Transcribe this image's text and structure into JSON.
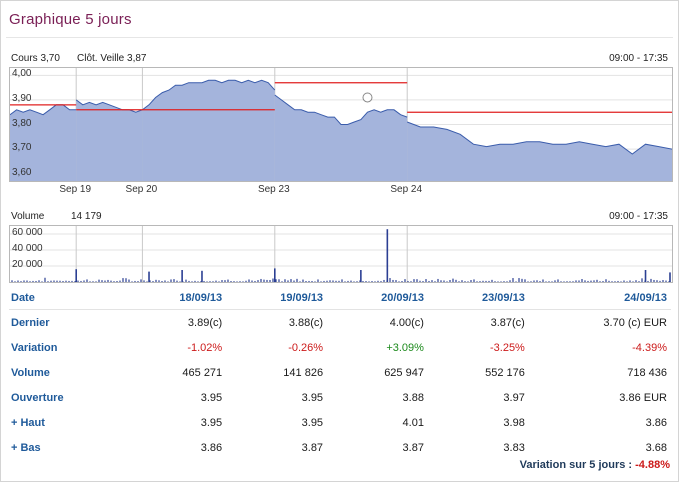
{
  "title": "Graphique 5 jours",
  "price_chart": {
    "cours_label": "Cours 3,70",
    "cloture_label": "Clôt. Veille 3,87",
    "time_range": "09:00 - 17:35",
    "y_ticks": [
      "4,00",
      "3,90",
      "3,80",
      "3,70",
      "3,60"
    ],
    "x_ticks": [
      "Sep 19",
      "Sep 20",
      "Sep 23",
      "Sep 24"
    ]
  },
  "volume_chart": {
    "volume_label": "Volume",
    "volume_value": "14 179",
    "time_range": "09:00 - 17:35",
    "y_ticks": [
      "60 000",
      "40 000",
      "20 000"
    ]
  },
  "chart_data": [
    {
      "type": "area",
      "ylim": [
        3.57,
        4.03
      ],
      "y_ticks": [
        4.0,
        3.9,
        3.8,
        3.7,
        3.6
      ],
      "x_labels": [
        "Sep 19",
        "Sep 20",
        "Sep 23",
        "Sep 24"
      ],
      "series": [
        {
          "x": [
            0.0,
            0.1,
            0.2,
            0.3,
            0.4,
            0.5,
            0.6,
            0.7,
            0.8,
            0.9,
            1.0
          ],
          "y": [
            3.84,
            3.86,
            3.85,
            3.86,
            3.85,
            3.84,
            3.86,
            3.88,
            3.88,
            3.86,
            3.86
          ]
        },
        {
          "x": [
            1.0,
            1.1,
            1.2,
            1.3,
            1.4,
            1.5,
            1.6,
            1.7,
            1.8,
            1.9,
            2.0
          ],
          "y": [
            3.9,
            3.88,
            3.89,
            3.88,
            3.89,
            3.88,
            3.87,
            3.86,
            3.86,
            3.85,
            3.86
          ]
        },
        {
          "x": [
            2.0,
            2.1,
            2.2,
            2.3,
            2.4,
            2.5,
            2.6,
            2.7,
            2.8,
            2.9,
            3.0,
            3.1,
            3.2,
            3.3,
            3.4,
            3.5,
            3.6,
            3.7,
            3.8,
            3.9,
            4.0
          ],
          "y": [
            3.86,
            3.88,
            3.91,
            3.93,
            3.94,
            3.96,
            3.96,
            3.97,
            3.97,
            3.97,
            3.98,
            3.98,
            3.97,
            3.98,
            3.98,
            3.97,
            3.98,
            3.97,
            3.98,
            3.97,
            3.94
          ]
        },
        {
          "x": [
            4.0,
            4.1,
            4.2,
            4.3,
            4.4,
            4.5,
            4.6,
            4.7,
            4.8,
            4.9,
            5.0,
            5.1,
            5.2,
            5.3,
            5.4,
            5.5,
            5.6,
            5.7,
            5.8,
            5.9,
            6.0
          ],
          "y": [
            3.92,
            3.9,
            3.88,
            3.86,
            3.86,
            3.85,
            3.85,
            3.84,
            3.83,
            3.83,
            3.8,
            3.8,
            3.81,
            3.82,
            3.85,
            3.86,
            3.85,
            3.86,
            3.86,
            3.84,
            3.83
          ]
        },
        {
          "x": [
            6.0,
            6.2,
            6.4,
            6.6,
            6.8,
            7.0,
            7.2,
            7.4,
            7.6,
            7.8,
            8.0,
            8.2,
            8.4,
            8.6,
            8.8,
            9.0,
            9.2,
            9.4,
            9.6,
            9.8,
            10.0
          ],
          "y": [
            3.81,
            3.79,
            3.79,
            3.78,
            3.76,
            3.72,
            3.71,
            3.72,
            3.72,
            3.73,
            3.73,
            3.72,
            3.72,
            3.73,
            3.72,
            3.71,
            3.72,
            3.68,
            3.72,
            3.71,
            3.7
          ]
        }
      ],
      "reference_lines": [
        {
          "x": [
            0,
            1
          ],
          "y": 3.88
        },
        {
          "x": [
            1,
            4
          ],
          "y": 3.86
        },
        {
          "x": [
            4,
            6
          ],
          "y": 3.97
        },
        {
          "x": [
            6,
            10
          ],
          "y": 3.85
        }
      ],
      "marker": {
        "x": 5.4,
        "y": 3.91
      },
      "colors": {
        "fill": "#a4b4dc",
        "line": "#3a5cab",
        "reference": "#e02020"
      }
    },
    {
      "type": "bar",
      "ylim": [
        0,
        70000
      ],
      "y_ticks": [
        60000,
        40000,
        20000
      ],
      "spikes": [
        {
          "x": 1.0,
          "value": 16000
        },
        {
          "x": 2.1,
          "value": 13000
        },
        {
          "x": 2.6,
          "value": 15000
        },
        {
          "x": 2.9,
          "value": 14000
        },
        {
          "x": 4.0,
          "value": 17000
        },
        {
          "x": 5.3,
          "value": 15000
        },
        {
          "x": 5.7,
          "value": 66000
        },
        {
          "x": 9.6,
          "value": 15000
        },
        {
          "x": 10.0,
          "value": 12000
        }
      ],
      "baseline_max": 5000,
      "colors": {
        "bar": "#2b3f93"
      }
    }
  ],
  "table": {
    "header": {
      "label": "Date",
      "dates": [
        "18/09/13",
        "19/09/13",
        "20/09/13",
        "23/09/13",
        "24/09/13"
      ]
    },
    "rows": [
      {
        "label": "Dernier",
        "values": [
          "3.89(c)",
          "3.88(c)",
          "4.00(c)",
          "3.87(c)",
          "3.70 (c) EUR"
        ],
        "styles": [
          "",
          "",
          "",
          "",
          ""
        ]
      },
      {
        "label": "Variation",
        "values": [
          "-1.02%",
          "-0.26%",
          "+3.09%",
          "-3.25%",
          "-4.39%"
        ],
        "styles": [
          "neg",
          "neg",
          "pos",
          "neg",
          "neg"
        ]
      },
      {
        "label": "Volume",
        "values": [
          "465 271",
          "141 826",
          "625 947",
          "552 176",
          "718 436"
        ],
        "styles": [
          "",
          "",
          "",
          "",
          ""
        ]
      },
      {
        "label": "Ouverture",
        "values": [
          "3.95",
          "3.95",
          "3.88",
          "3.97",
          "3.86 EUR"
        ],
        "styles": [
          "",
          "",
          "",
          "",
          ""
        ]
      },
      {
        "label": "+ Haut",
        "values": [
          "3.95",
          "3.95",
          "4.01",
          "3.98",
          "3.86"
        ],
        "styles": [
          "",
          "",
          "",
          "",
          ""
        ]
      },
      {
        "label": "+ Bas",
        "values": [
          "3.86",
          "3.87",
          "3.87",
          "3.83",
          "3.68"
        ],
        "styles": [
          "",
          "",
          "",
          "",
          ""
        ]
      }
    ]
  },
  "footer": {
    "label": "Variation sur 5 jours :",
    "value": "-4.88%"
  }
}
